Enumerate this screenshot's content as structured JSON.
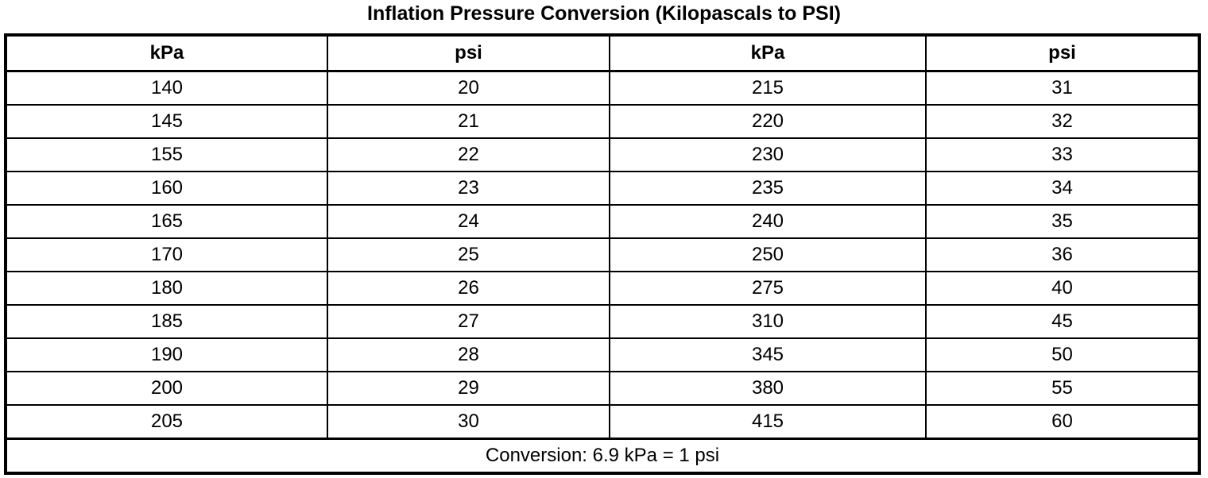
{
  "title": "Inflation Pressure Conversion (Kilopascals to PSI)",
  "table": {
    "headers": [
      "kPa",
      "psi",
      "kPa",
      "psi"
    ],
    "rows": [
      [
        "140",
        "20",
        "215",
        "31"
      ],
      [
        "145",
        "21",
        "220",
        "32"
      ],
      [
        "155",
        "22",
        "230",
        "33"
      ],
      [
        "160",
        "23",
        "235",
        "34"
      ],
      [
        "165",
        "24",
        "240",
        "35"
      ],
      [
        "170",
        "25",
        "250",
        "36"
      ],
      [
        "180",
        "26",
        "275",
        "40"
      ],
      [
        "185",
        "27",
        "310",
        "45"
      ],
      [
        "190",
        "28",
        "345",
        "50"
      ],
      [
        "200",
        "29",
        "380",
        "55"
      ],
      [
        "205",
        "30",
        "415",
        "60"
      ]
    ],
    "footer": "Conversion: 6.9 kPa = 1 psi"
  },
  "colors": {
    "text": "#000000",
    "border": "#000000",
    "background": "#ffffff"
  }
}
